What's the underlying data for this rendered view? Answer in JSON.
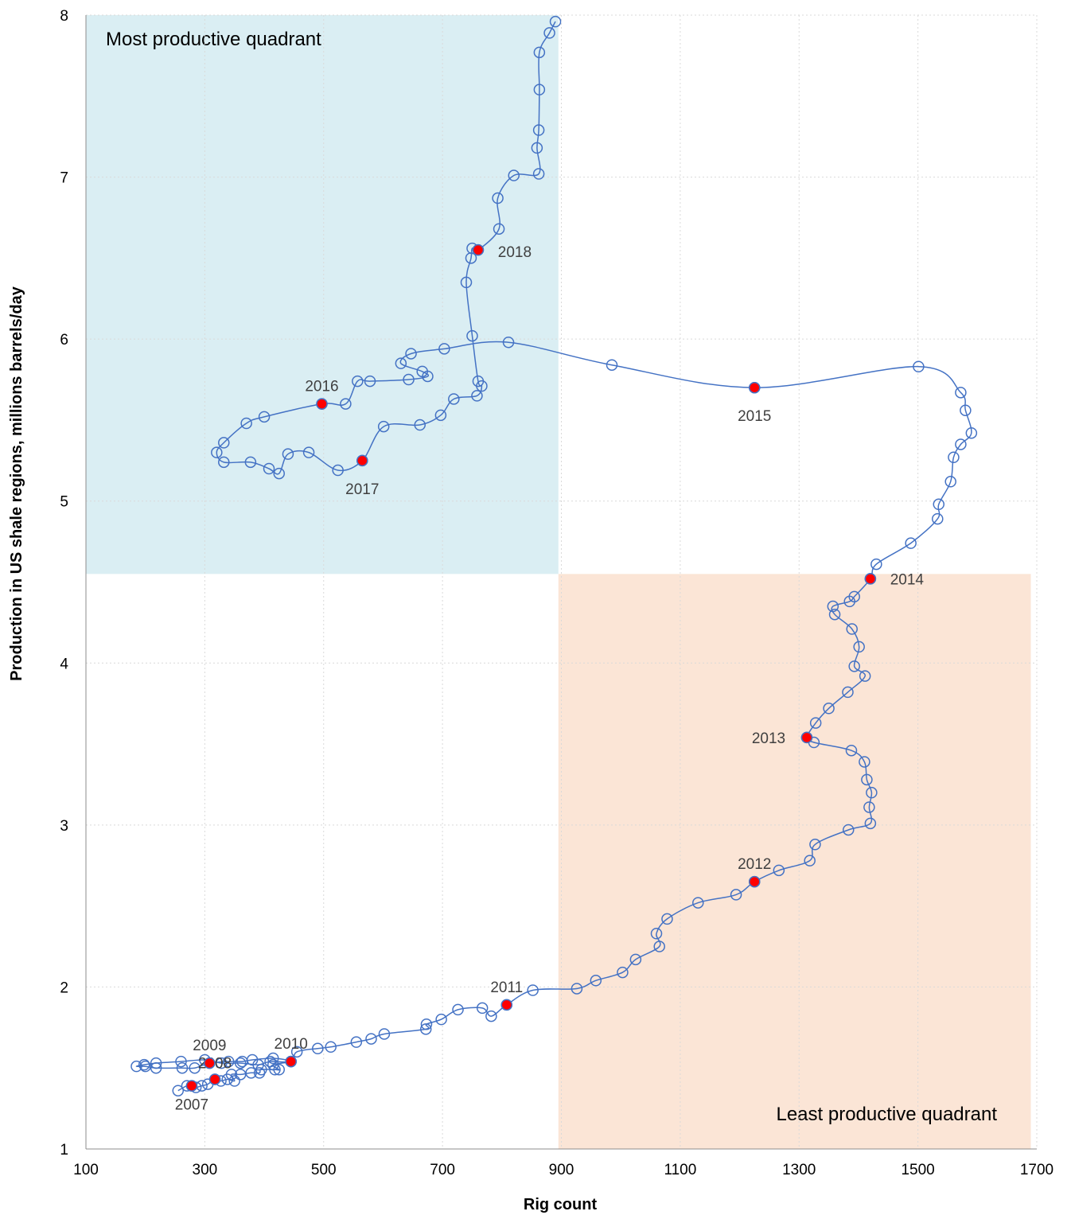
{
  "chart_data": {
    "type": "scatter",
    "xlabel": "Rig count",
    "ylabel": "Production in US shale regions, millions barrels/day",
    "xlim": [
      100,
      1700
    ],
    "ylim": [
      1,
      8
    ],
    "xticks": [
      100,
      300,
      500,
      700,
      900,
      1100,
      1300,
      1500,
      1700
    ],
    "yticks": [
      1,
      2,
      3,
      4,
      5,
      6,
      7,
      8
    ],
    "grid": "dotted",
    "colors": {
      "line": "#4472C4",
      "marker": "#4472C4",
      "highlight": "#FF0000",
      "most_productive_fill": "#DAEEF3",
      "least_productive_fill": "#FBE5D6"
    },
    "regions": [
      {
        "label": "Most productive quadrant",
        "x": [
          100,
          895
        ],
        "y": [
          4.55,
          8
        ],
        "color": "#DAEEF3"
      },
      {
        "label": "Least productive quadrant",
        "x": [
          895,
          1690
        ],
        "y": [
          1,
          4.55
        ],
        "color": "#FBE5D6"
      }
    ],
    "highlight_points": [
      {
        "label": "2007",
        "x": 278,
        "y": 1.39
      },
      {
        "label": "2008",
        "x": 317,
        "y": 1.43
      },
      {
        "label": "2009",
        "x": 308,
        "y": 1.53
      },
      {
        "label": "2010",
        "x": 445,
        "y": 1.54
      },
      {
        "label": "2011",
        "x": 808,
        "y": 1.89
      },
      {
        "label": "2012",
        "x": 1225,
        "y": 2.65
      },
      {
        "label": "2013",
        "x": 1313,
        "y": 3.54
      },
      {
        "label": "2014",
        "x": 1420,
        "y": 4.52
      },
      {
        "label": "2015",
        "x": 1225,
        "y": 5.7
      },
      {
        "label": "2016",
        "x": 497,
        "y": 5.6
      },
      {
        "label": "2017",
        "x": 565,
        "y": 5.25
      },
      {
        "label": "2018",
        "x": 760,
        "y": 6.55
      }
    ],
    "series": [
      {
        "points": [
          [
            255,
            1.36
          ],
          [
            270,
            1.39
          ],
          [
            278,
            1.39
          ],
          [
            285,
            1.38
          ],
          [
            295,
            1.39
          ],
          [
            305,
            1.4
          ],
          [
            317,
            1.43
          ],
          [
            327,
            1.42
          ],
          [
            338,
            1.43
          ],
          [
            350,
            1.42
          ],
          [
            345,
            1.46
          ],
          [
            360,
            1.46
          ],
          [
            378,
            1.47
          ],
          [
            392,
            1.47
          ],
          [
            395,
            1.49
          ],
          [
            418,
            1.49
          ],
          [
            425,
            1.49
          ],
          [
            415,
            1.52
          ],
          [
            445,
            1.54
          ],
          [
            415,
            1.56
          ],
          [
            380,
            1.55
          ],
          [
            363,
            1.54
          ],
          [
            340,
            1.54
          ],
          [
            308,
            1.53
          ],
          [
            283,
            1.5
          ],
          [
            262,
            1.5
          ],
          [
            218,
            1.5
          ],
          [
            200,
            1.51
          ],
          [
            185,
            1.51
          ],
          [
            198,
            1.52
          ],
          [
            218,
            1.53
          ],
          [
            260,
            1.54
          ],
          [
            300,
            1.55
          ],
          [
            328,
            1.53
          ],
          [
            360,
            1.53
          ],
          [
            390,
            1.52
          ],
          [
            410,
            1.54
          ],
          [
            445,
            1.54
          ],
          [
            455,
            1.6
          ],
          [
            490,
            1.62
          ],
          [
            512,
            1.63
          ],
          [
            555,
            1.66
          ],
          [
            580,
            1.68
          ],
          [
            602,
            1.71
          ],
          [
            672,
            1.74
          ],
          [
            673,
            1.77
          ],
          [
            698,
            1.8
          ],
          [
            726,
            1.86
          ],
          [
            767,
            1.87
          ],
          [
            782,
            1.82
          ],
          [
            808,
            1.89
          ],
          [
            852,
            1.98
          ],
          [
            926,
            1.99
          ],
          [
            958,
            2.04
          ],
          [
            1003,
            2.09
          ],
          [
            1025,
            2.17
          ],
          [
            1065,
            2.25
          ],
          [
            1060,
            2.33
          ],
          [
            1078,
            2.42
          ],
          [
            1130,
            2.52
          ],
          [
            1194,
            2.57
          ],
          [
            1225,
            2.65
          ],
          [
            1266,
            2.72
          ],
          [
            1318,
            2.78
          ],
          [
            1327,
            2.88
          ],
          [
            1383,
            2.97
          ],
          [
            1420,
            3.01
          ],
          [
            1418,
            3.11
          ],
          [
            1422,
            3.2
          ],
          [
            1414,
            3.28
          ],
          [
            1410,
            3.39
          ],
          [
            1388,
            3.46
          ],
          [
            1325,
            3.51
          ],
          [
            1313,
            3.54
          ],
          [
            1328,
            3.63
          ],
          [
            1350,
            3.72
          ],
          [
            1382,
            3.82
          ],
          [
            1411,
            3.92
          ],
          [
            1393,
            3.98
          ],
          [
            1401,
            4.1
          ],
          [
            1389,
            4.21
          ],
          [
            1360,
            4.3
          ],
          [
            1357,
            4.35
          ],
          [
            1385,
            4.38
          ],
          [
            1393,
            4.41
          ],
          [
            1420,
            4.52
          ],
          [
            1430,
            4.61
          ],
          [
            1488,
            4.74
          ],
          [
            1533,
            4.89
          ],
          [
            1535,
            4.98
          ],
          [
            1555,
            5.12
          ],
          [
            1560,
            5.27
          ],
          [
            1572,
            5.35
          ],
          [
            1590,
            5.42
          ],
          [
            1580,
            5.56
          ],
          [
            1572,
            5.67
          ],
          [
            1501,
            5.83
          ],
          [
            1225,
            5.7
          ],
          [
            985,
            5.84
          ],
          [
            811,
            5.98
          ],
          [
            703,
            5.94
          ],
          [
            647,
            5.91
          ],
          [
            630,
            5.85
          ],
          [
            666,
            5.8
          ],
          [
            675,
            5.77
          ],
          [
            643,
            5.75
          ],
          [
            578,
            5.74
          ],
          [
            557,
            5.74
          ],
          [
            537,
            5.6
          ],
          [
            497,
            5.6
          ],
          [
            400,
            5.52
          ],
          [
            370,
            5.48
          ],
          [
            332,
            5.36
          ],
          [
            320,
            5.3
          ],
          [
            332,
            5.24
          ],
          [
            377,
            5.24
          ],
          [
            408,
            5.2
          ],
          [
            425,
            5.17
          ],
          [
            440,
            5.29
          ],
          [
            475,
            5.3
          ],
          [
            524,
            5.19
          ],
          [
            565,
            5.25
          ],
          [
            601,
            5.46
          ],
          [
            662,
            5.47
          ],
          [
            697,
            5.53
          ],
          [
            719,
            5.63
          ],
          [
            758,
            5.65
          ],
          [
            766,
            5.71
          ],
          [
            760,
            5.74
          ],
          [
            750,
            6.02
          ],
          [
            740,
            6.35
          ],
          [
            748,
            6.5
          ],
          [
            750,
            6.56
          ],
          [
            760,
            6.55
          ],
          [
            795,
            6.68
          ],
          [
            793,
            6.87
          ],
          [
            820,
            7.01
          ],
          [
            862,
            7.02
          ],
          [
            859,
            7.18
          ],
          [
            862,
            7.29
          ],
          [
            863,
            7.54
          ],
          [
            863,
            7.77
          ],
          [
            880,
            7.89
          ],
          [
            890,
            7.96
          ]
        ]
      }
    ]
  }
}
